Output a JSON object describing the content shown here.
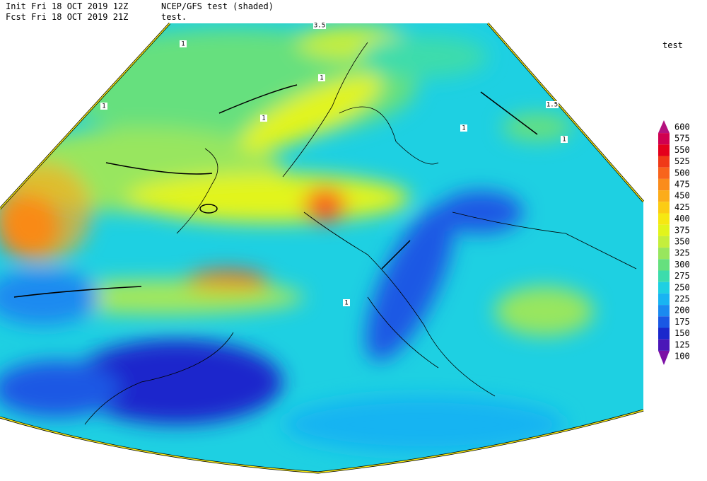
{
  "header": {
    "init": "Init  Fri 18 OCT 2019 12Z",
    "forecast": "Fcst Fri 18 OCT 2019 21Z",
    "product": "NCEP/GFS test (shaded)",
    "field": "test."
  },
  "legend": {
    "title": "test",
    "levels": [
      600,
      575,
      550,
      525,
      500,
      475,
      450,
      425,
      400,
      375,
      350,
      325,
      300,
      275,
      250,
      225,
      200,
      175,
      150,
      125,
      100
    ],
    "colors": [
      "#b4127e",
      "#d00050",
      "#e4001c",
      "#f03a18",
      "#f8641c",
      "#fa8c1c",
      "#fcac1a",
      "#fccc14",
      "#f6e812",
      "#e2f41c",
      "#c4ee3c",
      "#98e65e",
      "#66e07e",
      "#3cdcac",
      "#1ed0e2",
      "#18b4f2",
      "#1a8af0",
      "#1a58e4",
      "#1a28cc",
      "#4a16b8",
      "#7c10a6"
    ]
  },
  "contour_labels": [
    "3.5",
    "1",
    "1",
    "1",
    "1",
    "1.5",
    "1",
    "1",
    "1"
  ]
}
